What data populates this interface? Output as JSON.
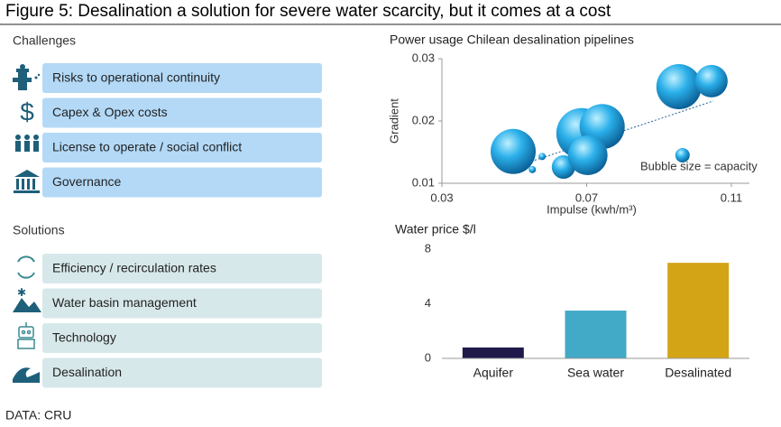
{
  "title": "Figure 5: Desalination a solution for severe water scarcity, but it comes at a cost",
  "challenges": {
    "heading": "Challenges",
    "items": [
      "Risks to operational continuity",
      "Capex & Opex costs",
      "License to operate / social conflict",
      "Governance"
    ]
  },
  "solutions": {
    "heading": "Solutions",
    "items": [
      "Efficiency / recirculation rates",
      "Water basin management",
      "Technology",
      "Desalination"
    ]
  },
  "source": "DATA: CRU",
  "chart_data": [
    {
      "type": "scatter",
      "title": "Power usage Chilean desalination pipelines",
      "x_label": "Impulse (kwh/m³)",
      "y_label": "Gradient",
      "annotation": "Bubble size = capacity",
      "x": [
        0.0497,
        0.0577,
        0.055,
        0.0636,
        0.0686,
        0.0743,
        0.0703,
        0.0955,
        0.1045,
        0.0965
      ],
      "y": [
        0.0151,
        0.0143,
        0.0122,
        0.0126,
        0.018,
        0.0191,
        0.0145,
        0.0255,
        0.0264,
        0.0145
      ],
      "sizes": [
        625,
        16,
        16,
        169,
        784,
        625,
        484,
        625,
        324,
        64
      ],
      "color": "#1a9bd7",
      "trendline": {
        "x": [
          0.05,
          0.105
        ],
        "y": [
          0.0126,
          0.0232
        ]
      },
      "xlim": [
        0.03,
        0.115
      ],
      "ylim": [
        0.01,
        0.03
      ],
      "xticks": [
        {
          "value": 0.03,
          "label": "0.03"
        },
        {
          "value": 0.07,
          "label": "0.07"
        },
        {
          "value": 0.11,
          "label": "0.11"
        }
      ],
      "yticks": [
        {
          "value": 0.01,
          "label": "0.01"
        },
        {
          "value": 0.02,
          "label": "0.02"
        },
        {
          "value": 0.03,
          "label": "0.03"
        }
      ]
    },
    {
      "type": "bar",
      "title": "Water price $/l",
      "categories": [
        "Aquifer",
        "Sea water",
        "Desalinated"
      ],
      "values": [
        0.8,
        3.5,
        7.0
      ],
      "colors": [
        "#1f1a4a",
        "#42a9c6",
        "#d4a417"
      ],
      "ylim": [
        0,
        8
      ],
      "yticks": [
        0,
        4,
        8
      ]
    }
  ]
}
